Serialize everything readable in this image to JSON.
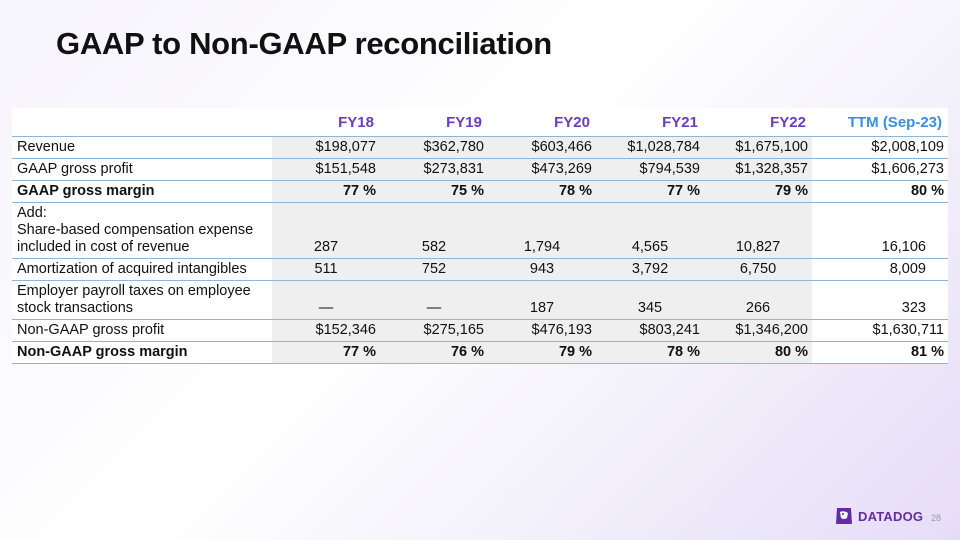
{
  "title": "GAAP to Non-GAAP reconciliation",
  "columns": [
    "FY18",
    "FY19",
    "FY20",
    "FY21",
    "FY22",
    "TTM (Sep-23)"
  ],
  "rows": {
    "revenue": {
      "label": "Revenue",
      "values": [
        "$198,077",
        "$362,780",
        "$603,466",
        "$1,028,784",
        "$1,675,100",
        "$2,008,109"
      ]
    },
    "gaap_gross_profit": {
      "label": "GAAP gross profit",
      "values": [
        "$151,548",
        "$273,831",
        "$473,269",
        "$794,539",
        "$1,328,357",
        "$1,606,273"
      ]
    },
    "gaap_gross_margin": {
      "label": "GAAP gross margin",
      "values": [
        "77 %",
        "75 %",
        "78 %",
        "77 %",
        "79 %",
        "80 %"
      ]
    },
    "sbc": {
      "label_line1": "Add:",
      "label_line2": "Share-based compensation expense included in cost of revenue",
      "values": [
        "287",
        "582",
        "1,794",
        "4,565",
        "10,827",
        "16,106"
      ]
    },
    "amortization": {
      "label": "Amortization of acquired intangibles",
      "values": [
        "511",
        "752",
        "943",
        "3,792",
        "6,750",
        "8,009"
      ]
    },
    "payroll_taxes": {
      "label": "Employer payroll taxes on employee stock transactions",
      "values": [
        "—",
        "—",
        "187",
        "345",
        "266",
        "323"
      ]
    },
    "non_gaap_gross_profit": {
      "label": "Non-GAAP gross profit",
      "values": [
        "$152,346",
        "$275,165",
        "$476,193",
        "$803,241",
        "$1,346,200",
        "$1,630,711"
      ]
    },
    "non_gaap_gross_margin": {
      "label": "Non-GAAP gross margin",
      "values": [
        "77 %",
        "76 %",
        "79 %",
        "78 %",
        "80 %",
        "81 %"
      ]
    }
  },
  "footer": {
    "logo_text": "DATADOG",
    "page_number": "28"
  },
  "colors": {
    "header_fy": "#6c3bbf",
    "header_ttm": "#3a8ee0",
    "rule": "#8fb4d8",
    "shade": "#efefef",
    "brand": "#632ca6"
  }
}
